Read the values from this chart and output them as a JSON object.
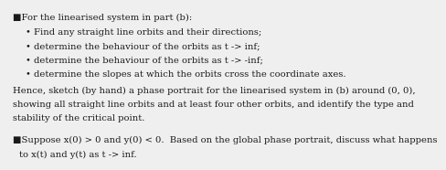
{
  "background_color": "#efefef",
  "bullet1_header": "For the linearised system in part (b):",
  "bullet1_square": "■",
  "sub_bullets": [
    "Find any straight line orbits and their directions;",
    "determine the behaviour of the orbits as t -> inf;",
    "determine the behaviour of the orbits as t -> -inf;",
    "determine the slopes at which the orbits cross the coordinate axes."
  ],
  "paragraph_lines": [
    "Hence, sketch (by hand) a phase portrait for the linearised system in (b) around (0, 0),",
    "showing all straight line orbits and at least four other orbits, and identify the type and",
    "stability of the critical point."
  ],
  "bullet2_square": "■",
  "bullet2_lines": [
    "Suppose x(0) > 0 and y(0) < 0.  Based on the global phase portrait, discuss what happens",
    "to x(t) and y(t) as t -> inf."
  ],
  "font_size": 7.2,
  "text_color": "#1a1a1a"
}
